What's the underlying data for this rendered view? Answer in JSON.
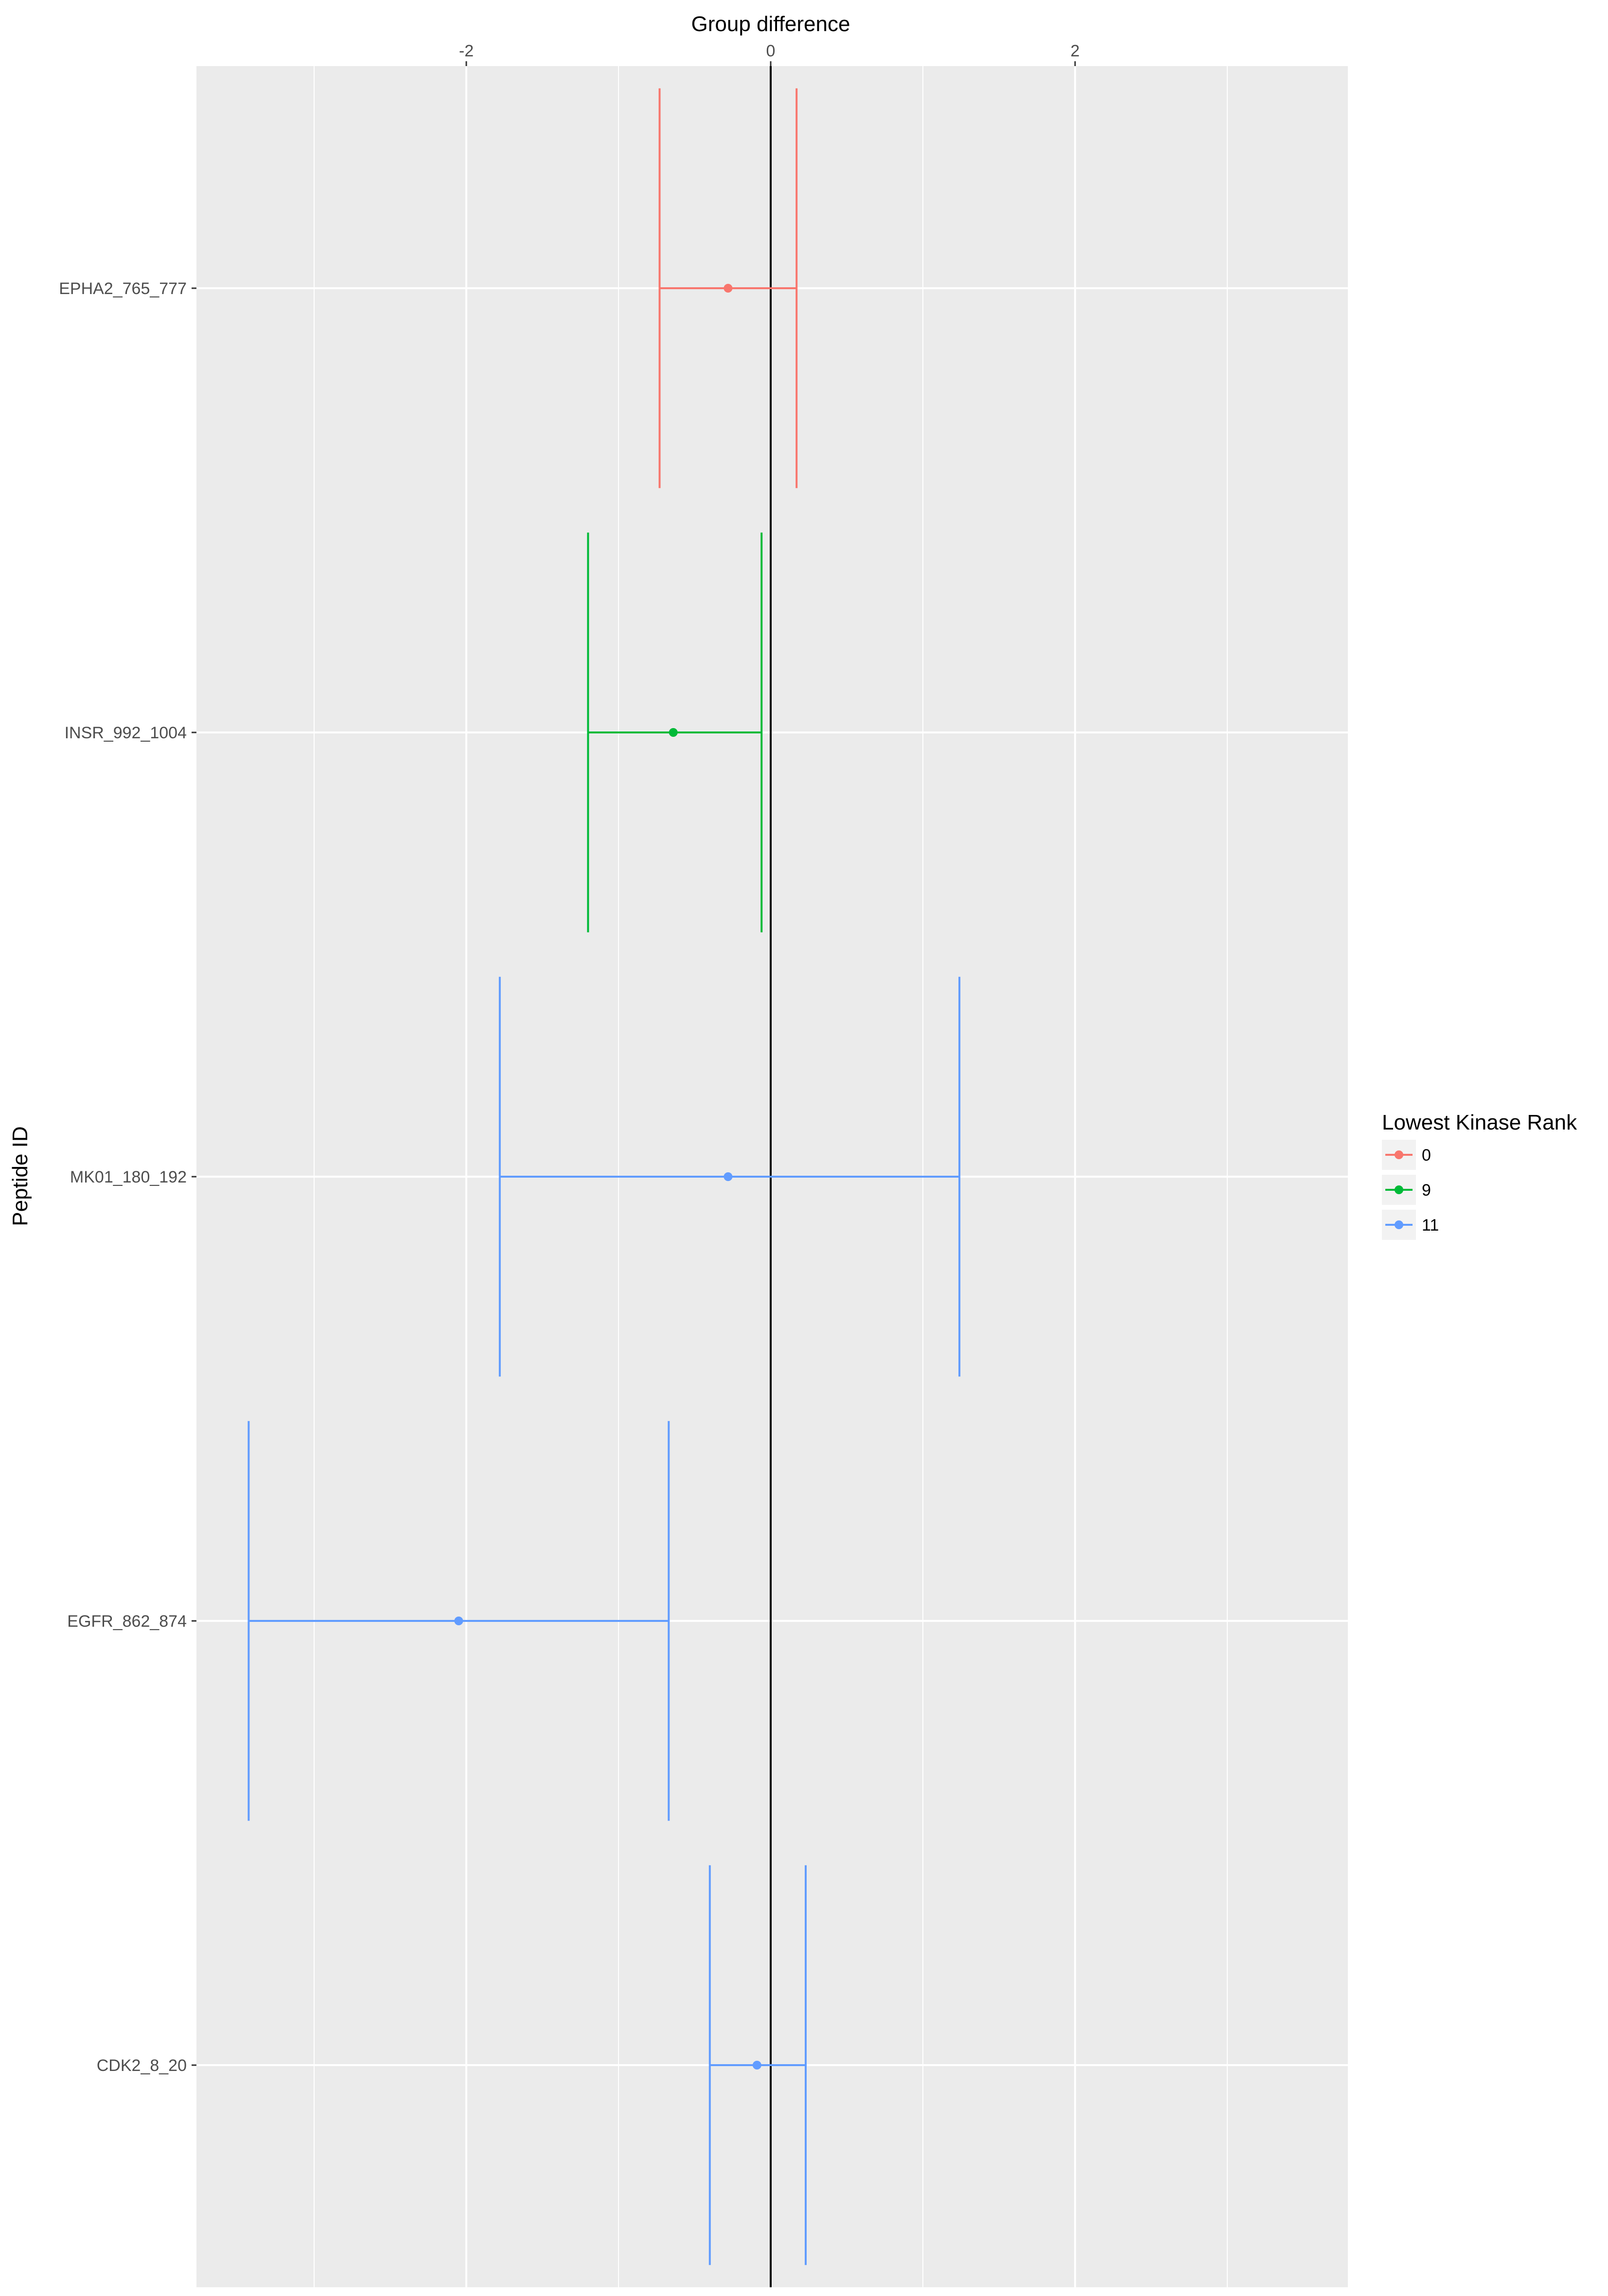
{
  "chart_data": {
    "type": "errorbar",
    "title": "",
    "xlabel": "Group difference",
    "ylabel": "Peptide ID",
    "xlim": [
      -3.75,
      3.8
    ],
    "x_ticks": [
      -2,
      0,
      2
    ],
    "x_minor": [
      -3,
      -1,
      1,
      3
    ],
    "reference_line": 0,
    "grid": true,
    "x_axis_position": "top",
    "legend": {
      "title": "Lowest Kinase Rank",
      "placement": "right",
      "entries": [
        {
          "label": "0",
          "color": "#F8766D"
        },
        {
          "label": "9",
          "color": "#00BA38"
        },
        {
          "label": "11",
          "color": "#619CFF"
        }
      ]
    },
    "series": [
      {
        "peptide": "EPHA2_765_777",
        "rank": "0",
        "estimate": -0.28,
        "lower": -0.73,
        "upper": 0.17,
        "color": "#F8766D"
      },
      {
        "peptide": "INSR_992_1004",
        "rank": "9",
        "estimate": -0.64,
        "lower": -1.2,
        "upper": -0.06,
        "color": "#00BA38"
      },
      {
        "peptide": "MK01_180_192",
        "rank": "11",
        "estimate": -0.28,
        "lower": -1.78,
        "upper": 1.24,
        "color": "#619CFF"
      },
      {
        "peptide": "EGFR_862_874",
        "rank": "11",
        "estimate": -2.05,
        "lower": -3.43,
        "upper": -0.67,
        "color": "#619CFF"
      },
      {
        "peptide": "CDK2_8_20",
        "rank": "11",
        "estimate": -0.09,
        "lower": -0.4,
        "upper": 0.23,
        "color": "#619CFF"
      }
    ]
  }
}
